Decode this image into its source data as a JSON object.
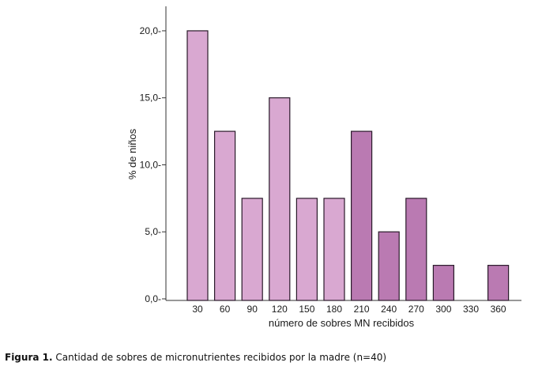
{
  "caption": {
    "label": "Figura 1.",
    "text": "Cantidad de sobres de micronutrientes recibidos por la madre (n=40)"
  },
  "chart_data": {
    "type": "bar",
    "categories": [
      "30",
      "60",
      "90",
      "120",
      "150",
      "180",
      "210",
      "240",
      "270",
      "300",
      "330",
      "360"
    ],
    "values": [
      20.0,
      12.5,
      7.5,
      15.0,
      7.5,
      7.5,
      12.5,
      5.0,
      7.5,
      2.5,
      0.0,
      2.5
    ],
    "xlabel": "número de sobres MN recibidos",
    "ylabel": "% de niños",
    "ylim": [
      0,
      21.0
    ],
    "yticks": [
      "0,0",
      "5,0",
      "10,0",
      "15,0",
      "20,0"
    ],
    "ytick_values": [
      0,
      5,
      10,
      15,
      20
    ],
    "grid": false,
    "colors": {
      "light": "#d9a8d1",
      "dark": "#ba7ab2",
      "stroke": "#2a1a2a",
      "axis": "#333333"
    },
    "dark_from_index": 6
  }
}
